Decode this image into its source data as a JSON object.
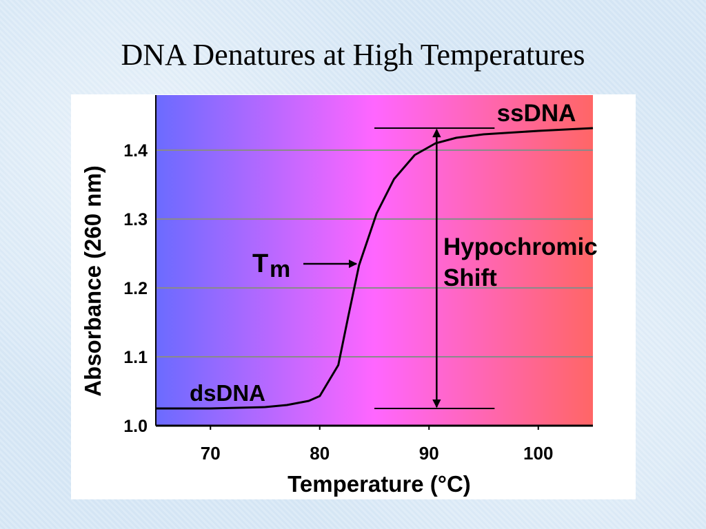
{
  "chart_data": {
    "type": "line",
    "title": "DNA Denatures at High Temperatures",
    "x_label": "Temperature (°C)",
    "y_label": "Absorbance (260 nm)",
    "x": [
      65,
      70,
      75,
      77,
      79,
      80,
      81.7,
      82.6,
      83.6,
      85.2,
      86.8,
      88.7,
      90.6,
      92.5,
      95,
      100,
      105
    ],
    "series": [
      {
        "name": "Absorbance",
        "color": "#000000",
        "values": [
          1.025,
          1.025,
          1.027,
          1.03,
          1.036,
          1.043,
          1.088,
          1.158,
          1.233,
          1.308,
          1.358,
          1.393,
          1.41,
          1.418,
          1.423,
          1.428,
          1.432
        ]
      }
    ],
    "xlim": [
      65,
      105
    ],
    "ylim": [
      1.0,
      1.48
    ],
    "xticks": [
      70,
      80,
      90,
      100
    ],
    "yticks": [
      {
        "value": 1.0,
        "label": "1.0"
      },
      1.1,
      1.2,
      1.3,
      1.4
    ],
    "grid": true,
    "background_gradient": [
      "#6b6bff",
      "#ff66ff",
      "#ff6666"
    ],
    "annotations": {
      "ssdna": "ssDNA",
      "dsdna": "dsDNA",
      "tm": {
        "main": "T",
        "sub": "m"
      },
      "hypochromic_shift": [
        "Hypochromic",
        "Shift"
      ]
    },
    "reference_levels": [
      1.025,
      1.432
    ],
    "reference_x_range": [
      85,
      96
    ],
    "shift_arrow_x": 90.7
  }
}
